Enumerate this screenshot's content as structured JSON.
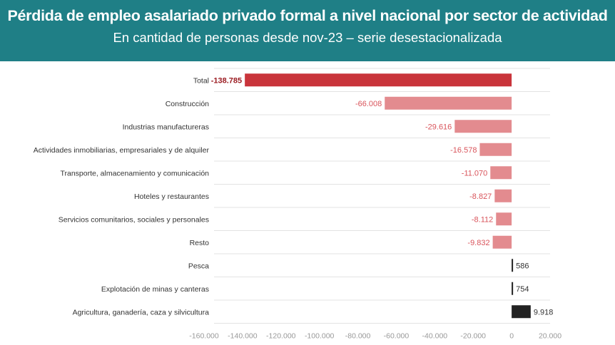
{
  "header": {
    "title": "Pérdida de empleo asalariado privado formal a nivel nacional por sector de actividad",
    "subtitle": "En cantidad de personas desde nov-23 – serie desestacionalizada"
  },
  "colors": {
    "header_bg": "#1f7f86",
    "total_bar": "#c9343b",
    "negative_bar": "#e38b8f",
    "positive_bar": "#222222",
    "gridline": "#e3e3e3"
  },
  "chart_data": {
    "type": "bar",
    "orientation": "horizontal",
    "categories": [
      "Total",
      "Construcción",
      "Industrias manufactureras",
      "Actividades inmobiliarias, empresariales y de alquiler",
      "Transporte, almacenamiento y comunicación",
      "Hoteles y restaurantes",
      "Servicios comunitarios, sociales y personales",
      "Resto",
      "Pesca",
      "Explotación de minas y canteras",
      "Agricultura, ganadería, caza y silvicultura"
    ],
    "values": [
      -138785,
      -66008,
      -29616,
      -16578,
      -11070,
      -8827,
      -8112,
      -9832,
      586,
      754,
      9918
    ],
    "value_labels": [
      "-138.785",
      "-66.008",
      "-29.616",
      "-16.578",
      "-11.070",
      "-8.827",
      "-8.112",
      "-9.832",
      "586",
      "754",
      "9.918"
    ],
    "x_ticks": [
      -160000,
      -140000,
      -120000,
      -100000,
      -80000,
      -60000,
      -40000,
      -20000,
      0,
      20000
    ],
    "x_tick_labels": [
      "-160.000",
      "-140.000",
      "-120.000",
      "-100.000",
      "-80.000",
      "-60.000",
      "-40.000",
      "-20.000",
      "0",
      "20.000"
    ],
    "xlim": [
      -160000,
      20000
    ],
    "grid": true
  }
}
